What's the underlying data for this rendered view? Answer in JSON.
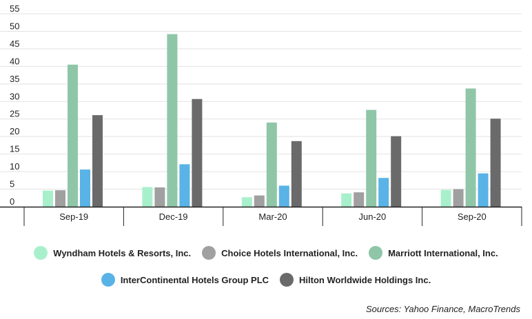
{
  "chart_data": {
    "type": "bar",
    "categories": [
      "Sep-19",
      "Dec-19",
      "Mar-20",
      "Jun-20",
      "Sep-20"
    ],
    "series": [
      {
        "name": "Wyndham Hotels & Resorts, Inc.",
        "color": "#a8f0cc",
        "values": [
          4.6,
          5.6,
          2.7,
          3.8,
          4.8
        ]
      },
      {
        "name": "Choice Hotels International, Inc.",
        "color": "#a0a0a0",
        "values": [
          4.7,
          5.5,
          3.2,
          4.1,
          5.0
        ]
      },
      {
        "name": "Marriott International, Inc.",
        "color": "#8fc6a8",
        "values": [
          40.5,
          49.2,
          24.0,
          27.6,
          33.7
        ]
      },
      {
        "name": "InterContinental Hotels Group PLC",
        "color": "#5ab3e6",
        "values": [
          10.6,
          12.1,
          6.0,
          8.2,
          9.5
        ]
      },
      {
        "name": "Hilton Worldwide Holdings Inc.",
        "color": "#6a6a6a",
        "values": [
          26.1,
          30.7,
          18.7,
          20.1,
          25.1
        ]
      }
    ],
    "ylim": [
      0,
      55
    ],
    "yticks": [
      0,
      5,
      10,
      15,
      20,
      25,
      30,
      35,
      40,
      45,
      50,
      55
    ],
    "grid": true,
    "legend_placement": "bottom"
  },
  "source_note": "Sources: Yahoo Finance, MacroTrends"
}
